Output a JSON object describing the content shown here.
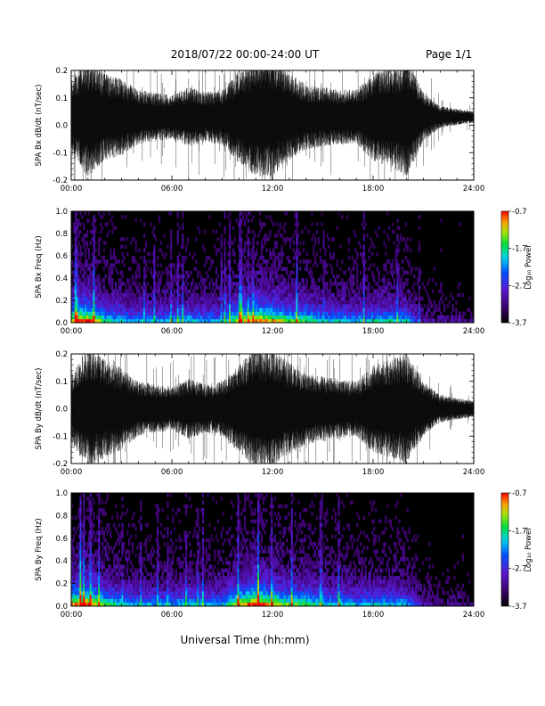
{
  "header": {
    "title": "2018/07/22  00:00-24:00 UT",
    "page": "Page 1/1"
  },
  "xlabel": "Universal Time (hh:mm)",
  "colorbar": {
    "label": "Log₁₀ Power",
    "ticks": [
      "-0.7",
      "-1.7",
      "-2.7",
      "-3.7"
    ]
  },
  "colors": {
    "trace": "#000000",
    "background": "#ffffff"
  },
  "chart_data": [
    {
      "type": "line",
      "ylabel": "SPA Bx dB/dt (nT/sec)",
      "xlim": [
        0,
        24
      ],
      "ylim": [
        -0.2,
        0.2
      ],
      "xticks": [
        "00:00",
        "06:00",
        "12:00",
        "18:00",
        "24:00"
      ],
      "yticks": [
        "0.2",
        "0.1",
        "0.0",
        "-0.1",
        "-0.2"
      ],
      "envelope_hours": [
        0,
        1,
        2,
        3,
        4,
        5,
        6,
        7,
        8,
        9,
        10,
        11,
        12,
        13,
        14,
        15,
        16,
        17,
        18,
        19,
        20,
        21,
        22,
        23,
        24
      ],
      "envelope_amplitude": [
        0.14,
        0.22,
        0.16,
        0.14,
        0.1,
        0.09,
        0.08,
        0.11,
        0.09,
        0.1,
        0.17,
        0.22,
        0.22,
        0.16,
        0.12,
        0.11,
        0.1,
        0.1,
        0.16,
        0.18,
        0.22,
        0.09,
        0.04,
        0.03,
        0.02
      ],
      "baseline": 0.03
    },
    {
      "type": "heatmap",
      "ylabel": "SPA Bx Freq (Hz)",
      "xlim": [
        0,
        24
      ],
      "ylim": [
        0,
        1
      ],
      "xticks": [
        "00:00",
        "06:00",
        "12:00",
        "18:00",
        "24:00"
      ],
      "yticks": [
        "1.0",
        "0.8",
        "0.6",
        "0.4",
        "0.2",
        "0.0"
      ],
      "zlim": [
        -3.7,
        -0.7
      ],
      "activity_hours": [
        0,
        1,
        2,
        3,
        4,
        5,
        6,
        7,
        8,
        9,
        10,
        11,
        12,
        13,
        14,
        15,
        16,
        17,
        18,
        19,
        20,
        21,
        22,
        23,
        24
      ],
      "activity_level": [
        0.75,
        0.85,
        0.55,
        0.5,
        0.45,
        0.45,
        0.45,
        0.5,
        0.45,
        0.45,
        0.7,
        0.8,
        0.75,
        0.6,
        0.6,
        0.5,
        0.5,
        0.45,
        0.5,
        0.5,
        0.5,
        0.2,
        0.15,
        0.15,
        0.1
      ]
    },
    {
      "type": "line",
      "ylabel": "SPA By dB/dt (nT/sec)",
      "xlim": [
        0,
        24
      ],
      "ylim": [
        -0.2,
        0.2
      ],
      "xticks": [
        "00:00",
        "06:00",
        "12:00",
        "18:00",
        "24:00"
      ],
      "yticks": [
        "0.2",
        "0.1",
        "0.0",
        "-0.1",
        "-0.2"
      ],
      "envelope_hours": [
        0,
        1,
        2,
        3,
        4,
        5,
        6,
        7,
        8,
        9,
        10,
        11,
        12,
        13,
        14,
        15,
        16,
        17,
        18,
        19,
        20,
        21,
        22,
        23,
        24
      ],
      "envelope_amplitude": [
        0.13,
        0.22,
        0.18,
        0.15,
        0.1,
        0.09,
        0.08,
        0.11,
        0.09,
        0.1,
        0.16,
        0.22,
        0.22,
        0.17,
        0.13,
        0.12,
        0.11,
        0.1,
        0.16,
        0.18,
        0.2,
        0.1,
        0.05,
        0.04,
        0.03
      ],
      "baseline": 0.0
    },
    {
      "type": "heatmap",
      "ylabel": "SPA By Freq (Hz)",
      "xlim": [
        0,
        24
      ],
      "ylim": [
        0,
        1
      ],
      "xticks": [
        "00:00",
        "06:00",
        "12:00",
        "18:00",
        "24:00"
      ],
      "yticks": [
        "1.0",
        "0.8",
        "0.6",
        "0.4",
        "0.2",
        "0.0"
      ],
      "zlim": [
        -3.7,
        -0.7
      ],
      "activity_hours": [
        0,
        1,
        2,
        3,
        4,
        5,
        6,
        7,
        8,
        9,
        10,
        11,
        12,
        13,
        14,
        15,
        16,
        17,
        18,
        19,
        20,
        21,
        22,
        23,
        24
      ],
      "activity_level": [
        0.75,
        0.85,
        0.6,
        0.5,
        0.45,
        0.45,
        0.45,
        0.5,
        0.45,
        0.45,
        0.7,
        0.85,
        0.75,
        0.6,
        0.6,
        0.5,
        0.5,
        0.45,
        0.5,
        0.5,
        0.45,
        0.2,
        0.15,
        0.15,
        0.1
      ]
    }
  ]
}
